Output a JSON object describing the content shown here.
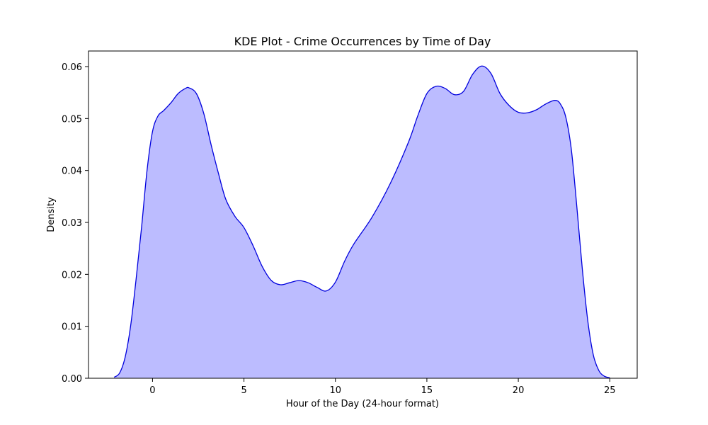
{
  "chart_data": {
    "type": "area",
    "title": "KDE Plot - Crime Occurrences by Time of Day",
    "xlabel": "Hour of the Day (24-hour format)",
    "ylabel": "Density",
    "xlim": [
      -3.5,
      26.5
    ],
    "ylim": [
      0,
      0.063
    ],
    "xticks": [
      0,
      5,
      10,
      15,
      20,
      25
    ],
    "yticks": [
      0.0,
      0.01,
      0.02,
      0.03,
      0.04,
      0.05,
      0.06
    ],
    "xtick_labels": [
      "0",
      "5",
      "10",
      "15",
      "20",
      "25"
    ],
    "ytick_labels": [
      "0.00",
      "0.01",
      "0.02",
      "0.03",
      "0.04",
      "0.05",
      "0.06"
    ],
    "grid": false,
    "colors": {
      "line": "#0000dd",
      "fill": "#bcbcff"
    },
    "series": [
      {
        "x": [
          -2.1,
          -1.8,
          -1.5,
          -1.2,
          -0.9,
          -0.6,
          -0.3,
          0.0,
          0.3,
          0.6,
          1.0,
          1.4,
          1.8,
          2.0,
          2.4,
          2.8,
          3.2,
          3.6,
          4.0,
          4.5,
          5.0,
          5.5,
          6.0,
          6.5,
          7.0,
          7.5,
          8.0,
          8.5,
          9.0,
          9.5,
          10.0,
          10.5,
          11.0,
          12.0,
          13.0,
          14.0,
          14.5,
          15.0,
          15.5,
          16.0,
          16.5,
          17.0,
          17.5,
          18.0,
          18.5,
          19.0,
          19.5,
          20.0,
          20.5,
          21.0,
          21.5,
          22.0,
          22.3,
          22.6,
          22.9,
          23.2,
          23.5,
          23.8,
          24.1,
          24.4,
          24.7,
          25.0
        ],
        "y": [
          0.0002,
          0.001,
          0.004,
          0.01,
          0.019,
          0.029,
          0.04,
          0.0475,
          0.0505,
          0.0515,
          0.053,
          0.0548,
          0.0558,
          0.0559,
          0.0548,
          0.051,
          0.045,
          0.0395,
          0.0345,
          0.0312,
          0.029,
          0.0255,
          0.0215,
          0.0188,
          0.018,
          0.0184,
          0.0188,
          0.0184,
          0.0175,
          0.0168,
          0.0185,
          0.0225,
          0.0258,
          0.031,
          0.0375,
          0.0455,
          0.0505,
          0.0548,
          0.0562,
          0.0558,
          0.0546,
          0.0552,
          0.0585,
          0.0601,
          0.0587,
          0.0548,
          0.0525,
          0.0512,
          0.0511,
          0.0517,
          0.0528,
          0.0535,
          0.0528,
          0.0502,
          0.044,
          0.033,
          0.021,
          0.011,
          0.0045,
          0.0015,
          0.0004,
          0.0001
        ]
      }
    ]
  }
}
